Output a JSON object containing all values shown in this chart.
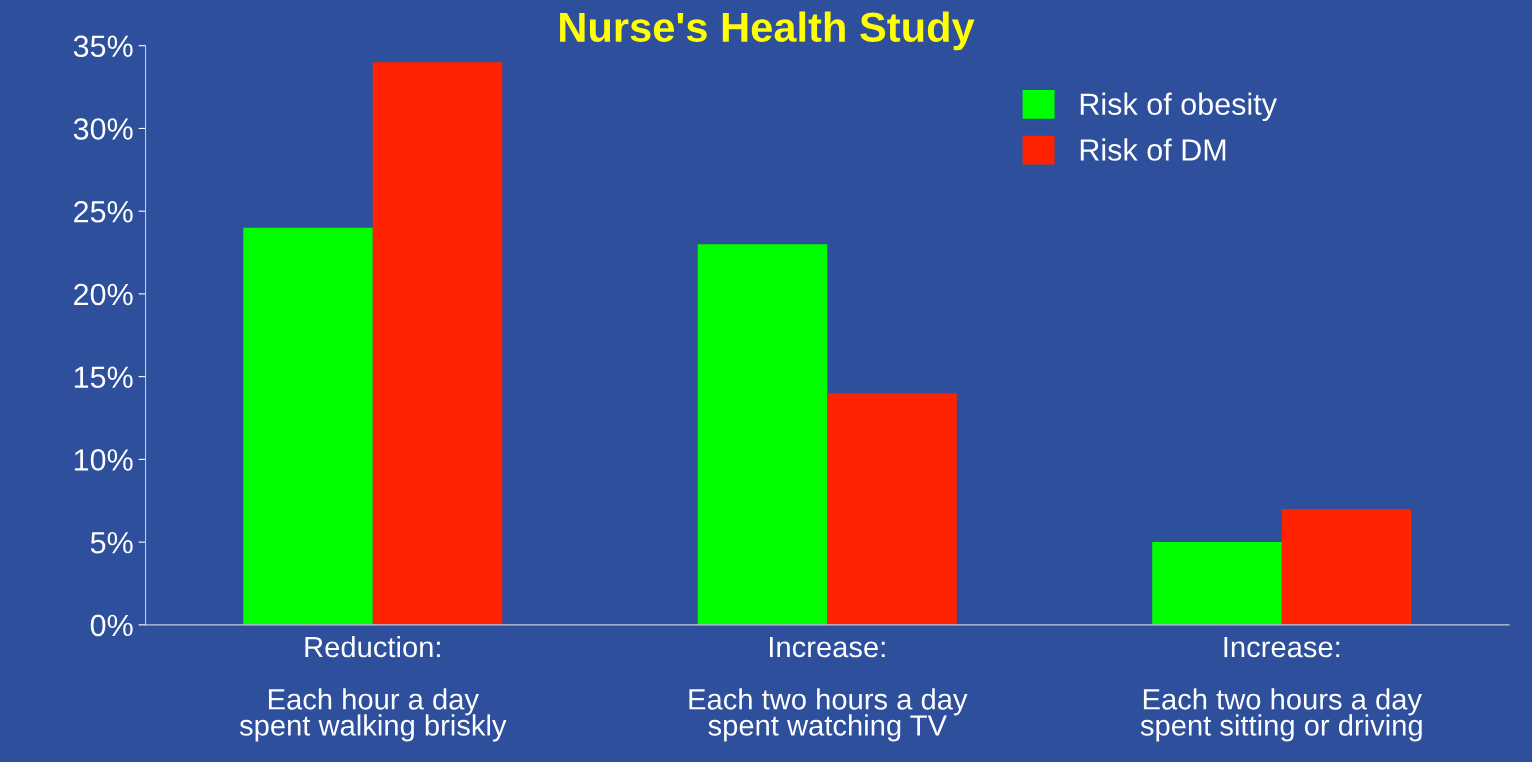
{
  "chart_data": {
    "type": "bar",
    "title": "Nurse's Health Study",
    "categories": [
      "Reduction:\n\nEach hour a day\nspent walking briskly",
      "Increase:\n\nEach two hours a day\nspent watching TV",
      "Increase:\n\nEach two hours a day\nspent sitting or driving"
    ],
    "series": [
      {
        "name": "Risk of obesity",
        "color": "#00ff00",
        "values": [
          24,
          23,
          5
        ]
      },
      {
        "name": "Risk of DM",
        "color": "#ff2200",
        "values": [
          34,
          14,
          7
        ]
      }
    ],
    "ylim": [
      0,
      35
    ],
    "yticks": [
      {
        "value": 0,
        "label": "0%"
      },
      {
        "value": 5,
        "label": "5%"
      },
      {
        "value": 10,
        "label": "10%"
      },
      {
        "value": 15,
        "label": "15%"
      },
      {
        "value": 20,
        "label": "20%"
      },
      {
        "value": 25,
        "label": "25%"
      },
      {
        "value": 30,
        "label": "30%"
      },
      {
        "value": 35,
        "label": "35%"
      }
    ],
    "grid": false,
    "legend": "top right"
  }
}
